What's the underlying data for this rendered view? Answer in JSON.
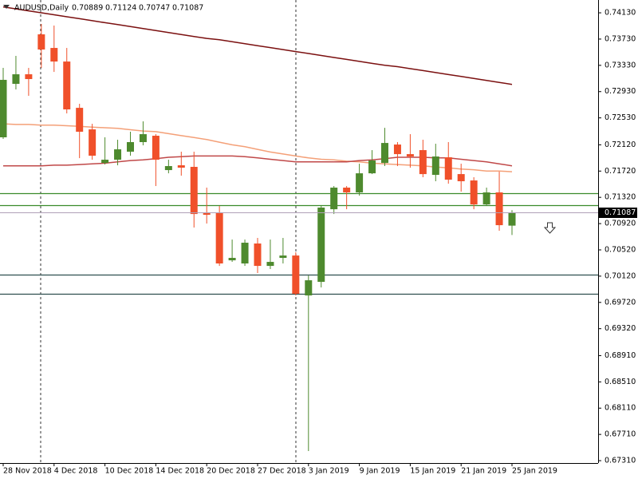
{
  "chart_data": {
    "type": "candlestick",
    "title": "AUDUSD,Daily",
    "categories": [
      "28 Nov 2018",
      null,
      null,
      null,
      "4 Dec 2018",
      null,
      null,
      null,
      "10 Dec 2018",
      null,
      null,
      null,
      "14 Dec 2018",
      null,
      null,
      null,
      "20 Dec 2018",
      null,
      null,
      null,
      "27 Dec 2018",
      null,
      null,
      null,
      "3 Jan 2019",
      null,
      null,
      null,
      "9 Jan 2019",
      null,
      null,
      null,
      "15 Jan 2019",
      null,
      null,
      null,
      "21 Jan 2019",
      null,
      null,
      null,
      "25 Jan 2019"
    ],
    "open": [
      0.72234,
      0.73048,
      0.73194,
      0.73802,
      0.73595,
      0.73388,
      0.72683,
      0.72355,
      0.71844,
      0.71893,
      0.72015,
      0.72161,
      0.72258,
      0.71735,
      0.71808,
      0.71784,
      0.71079,
      0.71079,
      0.70361,
      0.70313,
      0.70617,
      0.70276,
      0.70398,
      0.70434,
      0.69826,
      0.70033,
      0.71139,
      0.71468,
      0.71395,
      0.71686,
      0.71844,
      0.72124,
      0.71978,
      0.72039,
      0.71662,
      0.7193,
      0.71674,
      0.71577,
      0.71212,
      0.71395,
      0.70889
    ],
    "high": [
      0.73291,
      0.73474,
      0.73291,
      0.7396,
      0.73936,
      0.73595,
      0.72744,
      0.7244,
      0.72234,
      0.72197,
      0.72319,
      0.72477,
      0.72282,
      0.71893,
      0.72015,
      0.72015,
      0.71468,
      0.71188,
      0.70677,
      0.70677,
      0.70702,
      0.70677,
      0.70702,
      0.70483,
      0.7013,
      0.71188,
      0.71492,
      0.71492,
      0.71832,
      0.72039,
      0.72379,
      0.72161,
      0.72282,
      0.72197,
      0.72136,
      0.72161,
      0.71832,
      0.71626,
      0.71468,
      0.71711,
      0.71124
    ],
    "low": [
      0.7221,
      0.72963,
      0.72866,
      0.73291,
      0.7323,
      0.72598,
      0.71917,
      0.71893,
      0.7182,
      0.71808,
      0.71954,
      0.72112,
      0.71492,
      0.71686,
      0.7165,
      0.7086,
      0.70921,
      0.70276,
      0.70337,
      0.70276,
      0.70167,
      0.70228,
      0.70313,
      0.69826,
      0.67456,
      0.69948,
      0.71066,
      0.71139,
      0.71346,
      0.71674,
      0.71796,
      0.71796,
      0.71772,
      0.71626,
      0.71565,
      0.71528,
      0.71407,
      0.71139,
      0.71188,
      0.70811,
      0.70747
    ],
    "close": [
      0.73109,
      0.73194,
      0.73121,
      0.73571,
      0.73388,
      0.72659,
      0.72319,
      0.71954,
      0.71893,
      0.72051,
      0.72161,
      0.72282,
      0.71893,
      0.71796,
      0.71772,
      0.71066,
      0.71054,
      0.70313,
      0.70398,
      0.70629,
      0.70276,
      0.70337,
      0.70434,
      0.69851,
      0.70057,
      0.71164,
      0.71468,
      0.71395,
      0.71686,
      0.71881,
      0.72148,
      0.71978,
      0.71942,
      0.71674,
      0.71942,
      0.71589,
      0.71565,
      0.71212,
      0.71395,
      0.70896,
      0.71087
    ],
    "up_color": "#4e8a2e",
    "down_color": "#f0502a",
    "lines": [
      {
        "color": "#7b1010",
        "values": [
          0.7422,
          0.7419,
          0.7416,
          0.7413,
          0.741,
          0.7407,
          0.7404,
          0.7401,
          0.7398,
          0.7395,
          0.7392,
          0.7389,
          0.7386,
          0.7383,
          0.738,
          0.7377,
          0.7374,
          0.7372,
          0.7369,
          0.7366,
          0.7363,
          0.736,
          0.7357,
          0.7354,
          0.7351,
          0.7348,
          0.7345,
          0.7342,
          0.7339,
          0.7336,
          0.7333,
          0.7331,
          0.7328,
          0.7325,
          0.7322,
          0.7319,
          0.7316,
          0.7313,
          0.731,
          0.7307,
          0.7304
        ]
      },
      {
        "color": "#f4a078",
        "values": [
          0.7244,
          0.7243,
          0.7243,
          0.7242,
          0.7242,
          0.7241,
          0.724,
          0.7239,
          0.7238,
          0.7237,
          0.7235,
          0.7233,
          0.7232,
          0.7229,
          0.7226,
          0.7223,
          0.722,
          0.7216,
          0.7212,
          0.7209,
          0.7205,
          0.7201,
          0.7198,
          0.7195,
          0.7192,
          0.719,
          0.7189,
          0.7187,
          0.7186,
          0.7184,
          0.7183,
          0.7182,
          0.7181,
          0.718,
          0.7178,
          0.7177,
          0.7175,
          0.7174,
          0.7172,
          0.7172,
          0.7171
        ]
      },
      {
        "color": "#c04848",
        "values": [
          0.718,
          0.718,
          0.718,
          0.718,
          0.7181,
          0.7181,
          0.7182,
          0.7183,
          0.7184,
          0.7186,
          0.7188,
          0.7189,
          0.7191,
          0.7193,
          0.7194,
          0.7195,
          0.7195,
          0.7195,
          0.7195,
          0.7194,
          0.7192,
          0.719,
          0.7188,
          0.7186,
          0.7186,
          0.7186,
          0.7186,
          0.7186,
          0.7188,
          0.7189,
          0.7191,
          0.7193,
          0.7193,
          0.7193,
          0.7192,
          0.7192,
          0.719,
          0.7188,
          0.7186,
          0.7183,
          0.718
        ]
      }
    ],
    "levels": [
      {
        "value": 0.71383,
        "color": "#3a8a2a"
      },
      {
        "value": 0.712,
        "color": "#3a8a2a"
      },
      {
        "value": 0.70143,
        "color": "#2f4f4f"
      },
      {
        "value": 0.69851,
        "color": "#2f4f4f"
      }
    ],
    "ylim": [
      0.67274,
      0.74325
    ],
    "yticks": [
      {
        "value": 0.7413,
        "label": "0.74130"
      },
      {
        "value": 0.7373,
        "label": "0.73730"
      },
      {
        "value": 0.7333,
        "label": "0.73330"
      },
      {
        "value": 0.7293,
        "label": "0.72930"
      },
      {
        "value": 0.7253,
        "label": "0.72530"
      },
      {
        "value": 0.7212,
        "label": "0.72120"
      },
      {
        "value": 0.7172,
        "label": "0.71720"
      },
      {
        "value": 0.7132,
        "label": "0.71320"
      },
      {
        "value": 0.7092,
        "label": "0.70920"
      },
      {
        "value": 0.7052,
        "label": "0.70520"
      },
      {
        "value": 0.7012,
        "label": "0.70120"
      },
      {
        "value": 0.6972,
        "label": "0.69720"
      },
      {
        "value": 0.6932,
        "label": "0.69320"
      },
      {
        "value": 0.6891,
        "label": "0.68910"
      },
      {
        "value": 0.6851,
        "label": "0.68510"
      },
      {
        "value": 0.6811,
        "label": "0.68110"
      },
      {
        "value": 0.6771,
        "label": "0.67710"
      },
      {
        "value": 0.6731,
        "label": "0.67310"
      }
    ],
    "grid": false
  }
}
